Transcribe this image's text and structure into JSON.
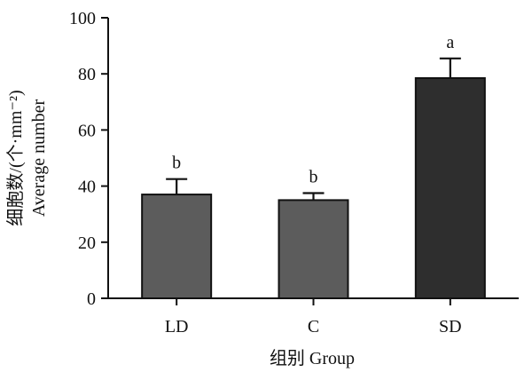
{
  "chart_data": {
    "type": "bar",
    "categories": [
      "LD",
      "C",
      "SD"
    ],
    "values": [
      37,
      35,
      78.5
    ],
    "errors": [
      5.5,
      2.5,
      7
    ],
    "significance": [
      "b",
      "b",
      "a"
    ],
    "colors": [
      "#5c5c5c",
      "#5c5c5c",
      "#2e2e2e"
    ],
    "title": "",
    "xlabel": "组别 Group",
    "ylabel_lines": [
      "细胞数/(个·mm⁻²)",
      "Average number"
    ],
    "ylim": [
      0,
      100
    ],
    "yticks": [
      0,
      20,
      40,
      60,
      80,
      100
    ],
    "grid": false
  }
}
